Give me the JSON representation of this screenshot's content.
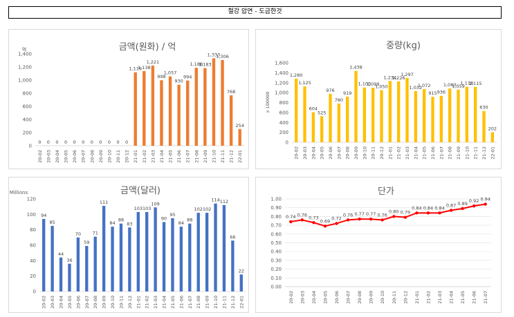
{
  "page_title": "철강 압연 - 도금한것",
  "chart_data": [
    {
      "type": "bar",
      "title": "금액(원화) / 억",
      "ylabel": "억",
      "color": "#ed7d31",
      "ylim": [
        0,
        1400
      ],
      "yticks": [
        0,
        200,
        400,
        600,
        800,
        1000,
        1200,
        1400
      ],
      "ytick_labels": [
        "0",
        "200",
        "400",
        "600",
        "800",
        "1,000",
        "1,200",
        "1,400"
      ],
      "categories": [
        "20-02",
        "20-03",
        "20-04",
        "20-05",
        "20-06",
        "20-07",
        "20-08",
        "20-09",
        "20-10",
        "20-11",
        "20-12",
        "21-01",
        "21-02",
        "21-03",
        "21-04",
        "21-05",
        "21-06",
        "21-07",
        "21-08",
        "21-09",
        "21-10",
        "21-11",
        "21-12",
        "22-01"
      ],
      "values": [
        0,
        0,
        0,
        0,
        0,
        0,
        0,
        0,
        0,
        0,
        0,
        1119,
        1138,
        1221,
        998,
        1057,
        930,
        994,
        1188,
        1183,
        1333,
        1306,
        768,
        254
      ],
      "value_labels": [
        "0",
        "0",
        "0",
        "0",
        "0",
        "0",
        "0",
        "0",
        "0",
        "0",
        "0",
        "1,119",
        "1,138",
        "1,221",
        "998",
        "1,057",
        "930",
        "994",
        "1,188",
        "1,183",
        "1,333",
        "1,306",
        "768",
        "254"
      ]
    },
    {
      "type": "bar",
      "title": "중량(kg)",
      "ylabel": "x 100000",
      "color": "#ffc000",
      "ylim": [
        0,
        1600
      ],
      "yticks": [
        0,
        200,
        400,
        600,
        800,
        1000,
        1200,
        1400,
        1600
      ],
      "ytick_labels": [
        "0",
        "200",
        "400",
        "600",
        "800",
        "1,000",
        "1,200",
        "1,400",
        "1,600"
      ],
      "categories": [
        "20-02",
        "20-03",
        "20-04",
        "20-05",
        "20-06",
        "20-07",
        "20-08",
        "20-09",
        "20-10",
        "20-11",
        "20-12",
        "21-01",
        "21-02",
        "21-03",
        "21-04",
        "21-05",
        "21-06",
        "21-07",
        "21-08",
        "21-09",
        "21-10",
        "21-11",
        "21-12",
        "22-01"
      ],
      "values": [
        1280,
        1125,
        604,
        525,
        976,
        780,
        919,
        1438,
        1103,
        1099,
        1050,
        1234,
        1226,
        1297,
        1032,
        1072,
        915,
        936,
        1083,
        1059,
        1118,
        1115,
        630,
        202
      ],
      "value_labels": [
        "1,280",
        "1,125",
        "604",
        "525",
        "976",
        "780",
        "919",
        "1,438",
        "1,103",
        "1,099",
        "1,050",
        "1,234",
        "1,226",
        "1,297",
        "1,032",
        "1,072",
        "915",
        "936",
        "1,083",
        "1,059",
        "1,118",
        "1,115",
        "630",
        "202"
      ]
    },
    {
      "type": "bar",
      "title": "금액(달러)",
      "ylabel": "Millions",
      "color": "#4472c4",
      "ylim": [
        0,
        120
      ],
      "yticks": [
        0,
        20,
        40,
        60,
        80,
        100,
        120
      ],
      "ytick_labels": [
        "0",
        "20",
        "40",
        "60",
        "80",
        "100",
        "120"
      ],
      "categories": [
        "20-02",
        "20-03",
        "20-04",
        "20-05",
        "20-06",
        "20-07",
        "20-08",
        "20-09",
        "20-10",
        "20-11",
        "20-12",
        "21-01",
        "21-02",
        "21-03",
        "21-04",
        "21-05",
        "21-06",
        "21-07",
        "21-08",
        "21-09",
        "21-10",
        "21-11",
        "21-12",
        "22-01"
      ],
      "values": [
        94,
        85,
        44,
        36,
        70,
        59,
        71,
        111,
        84,
        88,
        83,
        103,
        103,
        109,
        90,
        95,
        84,
        88,
        102,
        102,
        114,
        112,
        66,
        22
      ],
      "value_labels": [
        "94",
        "85",
        "44",
        "36",
        "70",
        "59",
        "71",
        "111",
        "84",
        "88",
        "83",
        "103",
        "103",
        "109",
        "90",
        "95",
        "84",
        "88",
        "102",
        "102",
        "114",
        "112",
        "66",
        "22"
      ]
    },
    {
      "type": "line",
      "title": "단가",
      "color": "#ff0000",
      "ylim": [
        0,
        1.0
      ],
      "yticks": [
        0,
        0.1,
        0.2,
        0.3,
        0.4,
        0.5,
        0.6,
        0.7,
        0.8,
        0.9,
        1.0
      ],
      "ytick_labels": [
        "0.00",
        "0.10",
        "0.20",
        "0.30",
        "0.40",
        "0.50",
        "0.60",
        "0.70",
        "0.80",
        "0.90",
        "1.00"
      ],
      "categories": [
        "20-02",
        "20-03",
        "20-04",
        "20-05",
        "20-06",
        "20-07",
        "20-08",
        "20-09",
        "20-10",
        "20-11",
        "20-12",
        "21-01",
        "21-02",
        "21-03",
        "21-04",
        "21-05",
        "21-06",
        "21-07"
      ],
      "values": [
        0.74,
        0.76,
        0.73,
        0.69,
        0.72,
        0.76,
        0.77,
        0.77,
        0.76,
        0.8,
        0.79,
        0.84,
        0.84,
        0.84,
        0.87,
        0.89,
        0.92,
        0.94
      ],
      "value_labels": [
        "0.74",
        "0.76",
        "0.73",
        "0.69",
        "0.72",
        "0.76",
        "0.77",
        "0.77",
        "0.76",
        "0.80",
        "0.79",
        "0.84",
        "0.84",
        "0.84",
        "0.87",
        "0.89",
        "0.92",
        "0.94"
      ]
    }
  ]
}
